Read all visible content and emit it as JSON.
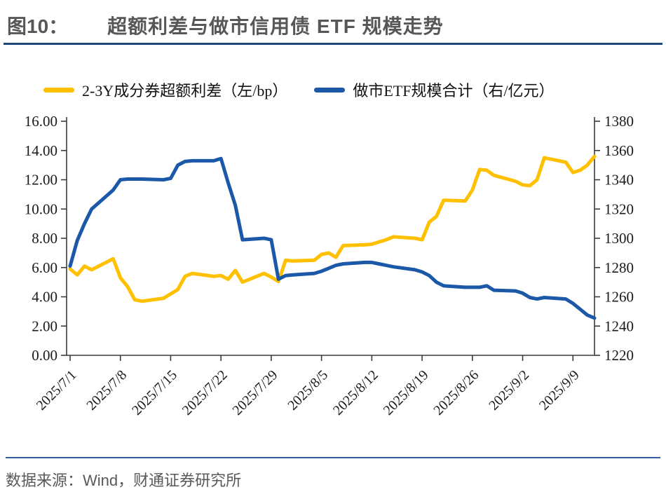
{
  "figure": {
    "label": "图10：",
    "title": "超额利差与做市信用债 ETF 规模走势"
  },
  "legend": [
    {
      "label": "2-3Y成分券超额利差（左/bp）",
      "color": "#FFC000"
    },
    {
      "label": "做市ETF规模合计（右/亿元）",
      "color": "#1B58A8"
    }
  ],
  "footer": {
    "source": "数据来源：Wind，财通证券研究所"
  },
  "colors": {
    "spread_line": "#FFC000",
    "etf_line": "#1B58A8",
    "axis": "#3a3a3a",
    "tick_text": "#1a1a1a",
    "title_rule": "#1f4678",
    "footer_rule": "#2e5c9f"
  },
  "chart_data": {
    "type": "line",
    "title": "超额利差与做市信用债 ETF 规模走势",
    "legend_position": "top",
    "grid": false,
    "x": [
      "2025/7/1",
      "2025/7/2",
      "2025/7/3",
      "2025/7/4",
      "2025/7/7",
      "2025/7/8",
      "2025/7/9",
      "2025/7/10",
      "2025/7/11",
      "2025/7/14",
      "2025/7/15",
      "2025/7/16",
      "2025/7/17",
      "2025/7/18",
      "2025/7/21",
      "2025/7/22",
      "2025/7/23",
      "2025/7/24",
      "2025/7/25",
      "2025/7/28",
      "2025/7/29",
      "2025/7/30",
      "2025/7/31",
      "2025/8/1",
      "2025/8/4",
      "2025/8/5",
      "2025/8/6",
      "2025/8/7",
      "2025/8/8",
      "2025/8/11",
      "2025/8/12",
      "2025/8/13",
      "2025/8/14",
      "2025/8/15",
      "2025/8/18",
      "2025/8/19",
      "2025/8/20",
      "2025/8/21",
      "2025/8/22",
      "2025/8/25",
      "2025/8/26",
      "2025/8/27",
      "2025/8/28",
      "2025/8/29",
      "2025/9/1",
      "2025/9/2",
      "2025/9/3",
      "2025/9/4",
      "2025/9/5",
      "2025/9/8",
      "2025/9/9",
      "2025/9/10",
      "2025/9/11",
      "2025/9/12"
    ],
    "x_tick_labels": [
      "2025/7/1",
      "2025/7/8",
      "2025/7/15",
      "2025/7/22",
      "2025/7/29",
      "2025/8/5",
      "2025/8/12",
      "2025/8/19",
      "2025/8/26",
      "2025/9/2",
      "2025/9/9"
    ],
    "left_axis": {
      "min": 0,
      "max": 16,
      "step": 2,
      "tick_labels": [
        "0.00",
        "2.00",
        "4.00",
        "6.00",
        "8.00",
        "10.00",
        "12.00",
        "14.00",
        "16.00"
      ]
    },
    "right_axis": {
      "min": 1220,
      "max": 1380,
      "step": 20,
      "tick_labels": [
        "1220",
        "1240",
        "1260",
        "1280",
        "1300",
        "1320",
        "1340",
        "1360",
        "1380"
      ]
    },
    "series": [
      {
        "name": "2-3Y成分券超额利差（左/bp）",
        "axis": "left",
        "color": "#FFC000",
        "values": [
          5.9,
          5.5,
          6.1,
          5.85,
          6.6,
          5.3,
          4.7,
          3.8,
          3.7,
          3.9,
          4.2,
          4.5,
          5.4,
          5.6,
          5.4,
          5.45,
          5.2,
          5.8,
          5.0,
          5.6,
          5.35,
          5.05,
          6.5,
          6.45,
          6.5,
          6.9,
          7.0,
          6.7,
          7.5,
          7.55,
          7.6,
          7.75,
          7.9,
          8.1,
          8.0,
          7.9,
          9.1,
          9.5,
          10.6,
          10.55,
          11.3,
          12.7,
          12.65,
          12.3,
          11.9,
          11.65,
          11.6,
          12.0,
          13.5,
          13.2,
          12.5,
          12.65,
          13.0,
          13.6
        ]
      },
      {
        "name": "做市ETF规模合计（右/亿元）",
        "axis": "right",
        "color": "#1B58A8",
        "values": [
          1281,
          1298.5,
          1310,
          1320,
          1333,
          1340,
          1340.5,
          1340.5,
          1340.5,
          1340,
          1341,
          1350,
          1352.5,
          1353,
          1353,
          1354.5,
          1338,
          1322.5,
          1299,
          1300,
          1299,
          1272,
          1274.5,
          1275,
          1276,
          1277.5,
          1279.5,
          1281.5,
          1282.5,
          1283.5,
          1283.5,
          1282.5,
          1281.5,
          1280.5,
          1278.5,
          1277,
          1274.5,
          1270,
          1267.5,
          1266.5,
          1266.5,
          1266.5,
          1267.5,
          1264.5,
          1264,
          1262.5,
          1259.5,
          1258.5,
          1259.5,
          1258.5,
          1255.5,
          1251.5,
          1247.5,
          1245.5
        ]
      }
    ]
  }
}
